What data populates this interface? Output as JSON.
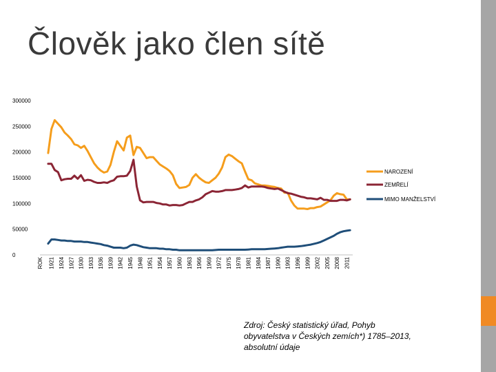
{
  "slide": {
    "title": "Člověk jako člen sítě",
    "source_note": "Zdroj: Český statistický úřad, Pohyb obyvatelstva v Českých zemích*) 1785–2013, absolutní údaje"
  },
  "colors": {
    "title": "#3a3a3a",
    "accent_orange": "#f08a24",
    "side_bar_gray": "#a6a6a6"
  },
  "chart_data": {
    "type": "line",
    "title": "",
    "xlabel": "",
    "ylabel": "",
    "ylim": [
      0,
      300000
    ],
    "yticks": [
      0,
      50000,
      100000,
      150000,
      200000,
      250000,
      300000
    ],
    "x_first_label": "ROK",
    "x_tick_labels": [
      "1921",
      "1924",
      "1927",
      "1930",
      "1933",
      "1936",
      "1939",
      "1942",
      "1945",
      "1948",
      "1951",
      "1954",
      "1957",
      "1960",
      "1963",
      "1966",
      "1969",
      "1972",
      "1975",
      "1978",
      "1981",
      "1984",
      "1987",
      "1990",
      "1993",
      "1996",
      "1999",
      "2002",
      "2005",
      "2008",
      "2011"
    ],
    "grid": false,
    "legend_position": "right",
    "series": [
      {
        "name": "NAROZENÍ",
        "color": "#f59d1c",
        "years": [
          1920,
          1921,
          1922,
          1923,
          1924,
          1925,
          1926,
          1927,
          1928,
          1929,
          1930,
          1931,
          1932,
          1933,
          1934,
          1935,
          1936,
          1937,
          1938,
          1939,
          1940,
          1941,
          1942,
          1943,
          1944,
          1945,
          1946,
          1947,
          1948,
          1949,
          1950,
          1951,
          1952,
          1953,
          1954,
          1955,
          1956,
          1957,
          1958,
          1959,
          1960,
          1961,
          1962,
          1963,
          1964,
          1965,
          1966,
          1967,
          1968,
          1969,
          1970,
          1971,
          1972,
          1973,
          1974,
          1975,
          1976,
          1977,
          1978,
          1979,
          1980,
          1981,
          1982,
          1983,
          1984,
          1985,
          1986,
          1987,
          1988,
          1989,
          1990,
          1991,
          1992,
          1993,
          1994,
          1995,
          1996,
          1997,
          1998,
          1999,
          2000,
          2001,
          2002,
          2003,
          2004,
          2005,
          2006,
          2007,
          2008,
          2009,
          2010,
          2011,
          2012
        ],
        "values": [
          198000,
          245000,
          262000,
          255000,
          248000,
          238000,
          232000,
          225000,
          215000,
          213000,
          208000,
          212000,
          202000,
          190000,
          178000,
          170000,
          164000,
          160000,
          162000,
          175000,
          200000,
          221000,
          212000,
          203000,
          228000,
          232000,
          194000,
          210000,
          208000,
          198000,
          188000,
          190000,
          190000,
          183000,
          176000,
          172000,
          168000,
          163000,
          155000,
          138000,
          130000,
          131000,
          132000,
          136000,
          150000,
          157000,
          150000,
          145000,
          141000,
          140000,
          145000,
          150000,
          158000,
          170000,
          190000,
          195000,
          192000,
          187000,
          182000,
          178000,
          162000,
          147000,
          145000,
          139000,
          137000,
          135000,
          135000,
          134000,
          133000,
          132000,
          130000,
          129000,
          121000,
          121000,
          106000,
          96000,
          90000,
          90000,
          90000,
          89000,
          91000,
          91000,
          93000,
          94000,
          98000,
          102000,
          106000,
          115000,
          120000,
          118000,
          117000,
          108000,
          108000
        ]
      },
      {
        "name": "ZEMŘELÍ",
        "color": "#8b2535",
        "years": [
          1920,
          1921,
          1922,
          1923,
          1924,
          1925,
          1926,
          1927,
          1928,
          1929,
          1930,
          1931,
          1932,
          1933,
          1934,
          1935,
          1936,
          1937,
          1938,
          1939,
          1940,
          1941,
          1942,
          1943,
          1944,
          1945,
          1946,
          1947,
          1948,
          1949,
          1950,
          1951,
          1952,
          1953,
          1954,
          1955,
          1956,
          1957,
          1958,
          1959,
          1960,
          1961,
          1962,
          1963,
          1964,
          1965,
          1966,
          1967,
          1968,
          1969,
          1970,
          1971,
          1972,
          1973,
          1974,
          1975,
          1976,
          1977,
          1978,
          1979,
          1980,
          1981,
          1982,
          1983,
          1984,
          1985,
          1986,
          1987,
          1988,
          1989,
          1990,
          1991,
          1992,
          1993,
          1994,
          1995,
          1996,
          1997,
          1998,
          1999,
          2000,
          2001,
          2002,
          2003,
          2004,
          2005,
          2006,
          2007,
          2008,
          2009,
          2010,
          2011,
          2012
        ],
        "values": [
          177000,
          177000,
          165000,
          161000,
          145000,
          147000,
          148000,
          148000,
          154000,
          148000,
          155000,
          144000,
          146000,
          145000,
          142000,
          140000,
          140000,
          141000,
          140000,
          143000,
          145000,
          152000,
          153000,
          153000,
          154000,
          163000,
          185000,
          133000,
          106000,
          102000,
          103000,
          103000,
          103000,
          101000,
          100000,
          98000,
          98000,
          96000,
          97000,
          97000,
          96000,
          97000,
          100000,
          103000,
          103000,
          106000,
          108000,
          112000,
          118000,
          121000,
          124000,
          123000,
          123000,
          124000,
          126000,
          126000,
          126000,
          127000,
          128000,
          130000,
          135000,
          131000,
          133000,
          133000,
          133000,
          133000,
          132000,
          130000,
          129000,
          128000,
          129000,
          126000,
          123000,
          120000,
          119000,
          117000,
          115000,
          113000,
          112000,
          110000,
          110000,
          109000,
          108000,
          111000,
          107000,
          107000,
          105000,
          105000,
          105000,
          107000,
          107000,
          106000,
          108000
        ]
      },
      {
        "name": "MIMO MANŽELSTVÍ",
        "color": "#1f4e79",
        "years": [
          1920,
          1921,
          1922,
          1923,
          1924,
          1925,
          1926,
          1927,
          1928,
          1929,
          1930,
          1931,
          1932,
          1933,
          1934,
          1935,
          1936,
          1937,
          1938,
          1939,
          1940,
          1941,
          1942,
          1943,
          1944,
          1945,
          1946,
          1947,
          1948,
          1949,
          1950,
          1951,
          1952,
          1953,
          1954,
          1955,
          1956,
          1957,
          1958,
          1959,
          1960,
          1961,
          1962,
          1963,
          1964,
          1965,
          1966,
          1967,
          1968,
          1969,
          1970,
          1971,
          1972,
          1973,
          1974,
          1975,
          1976,
          1977,
          1978,
          1979,
          1980,
          1981,
          1982,
          1983,
          1984,
          1985,
          1986,
          1987,
          1988,
          1989,
          1990,
          1991,
          1992,
          1993,
          1994,
          1995,
          1996,
          1997,
          1998,
          1999,
          2000,
          2001,
          2002,
          2003,
          2004,
          2005,
          2006,
          2007,
          2008,
          2009,
          2010,
          2011,
          2012
        ],
        "values": [
          22000,
          30000,
          30000,
          29000,
          28000,
          28000,
          27000,
          27000,
          26000,
          26000,
          26000,
          25000,
          25000,
          24000,
          23000,
          22000,
          21000,
          19000,
          18000,
          16000,
          14000,
          14000,
          14000,
          13000,
          14000,
          18000,
          20000,
          19000,
          17000,
          15000,
          14000,
          13000,
          13000,
          13000,
          12000,
          12000,
          11000,
          11000,
          10000,
          10000,
          9000,
          9000,
          9000,
          9000,
          9000,
          9000,
          9000,
          9000,
          9000,
          9000,
          9000,
          9500,
          10000,
          10000,
          10000,
          10000,
          10000,
          10000,
          10000,
          10000,
          10000,
          10500,
          11000,
          11000,
          11000,
          11000,
          11000,
          11500,
          12000,
          12500,
          13000,
          14000,
          15000,
          16000,
          16000,
          16000,
          16500,
          17000,
          18000,
          19000,
          20000,
          21500,
          23000,
          25000,
          28000,
          31000,
          34000,
          37000,
          41000,
          44000,
          46000,
          47000,
          48000
        ]
      }
    ]
  }
}
